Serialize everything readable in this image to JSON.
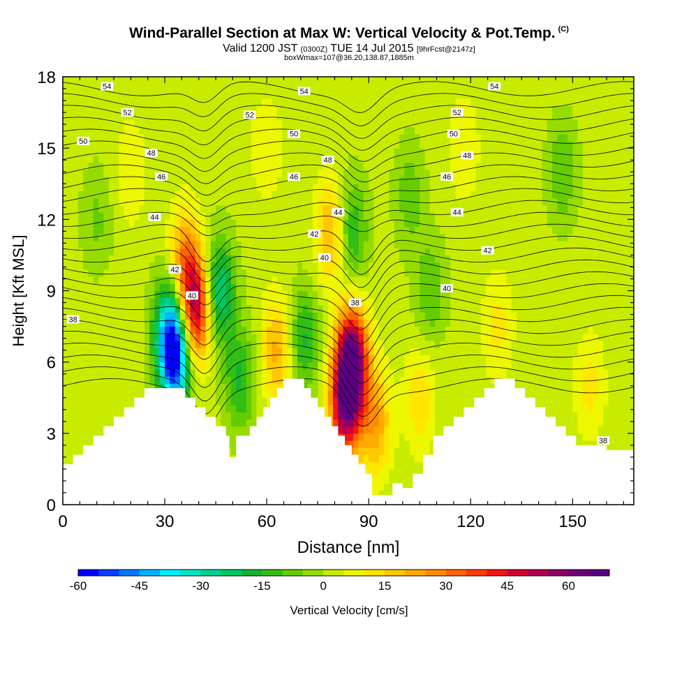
{
  "header": {
    "title": "Wind-Parallel Section at Max W: Vertical Velocity & Pot.Temp.",
    "copyright": "(C)",
    "valid_prefix": "Valid 1200 JST",
    "valid_utc": "(0300Z)",
    "valid_date": "TUE 14 Jul 2015",
    "forecast": "[9hrFcst@2147z]",
    "box_info": "boxWmax=107@36.20,138.87,1885m"
  },
  "chart_data": {
    "type": "heatmap",
    "xlabel": "Distance [nm]",
    "ylabel": "Height [Kft MSL]",
    "x_ticks": [
      0,
      30,
      60,
      90,
      120,
      150
    ],
    "y_ticks": [
      0,
      3,
      6,
      9,
      12,
      15,
      18
    ],
    "xlim": [
      0,
      168
    ],
    "ylim": [
      0,
      18
    ],
    "colorbar": {
      "label": "Vertical Velocity [cm/s]",
      "min": -60,
      "max": 70,
      "step": 5,
      "tick_values": [
        -60,
        -45,
        -30,
        -15,
        0,
        15,
        30,
        45,
        60
      ],
      "tick_labels": [
        "-60",
        "-45",
        "-30",
        "-15",
        "0",
        "15",
        "30",
        "45",
        "60"
      ],
      "colors": [
        "#0000ff",
        "#0a3cff",
        "#0078ff",
        "#00b4ff",
        "#00f0ff",
        "#00e6c8",
        "#00d296",
        "#00c864",
        "#14b432",
        "#32be14",
        "#64cc00",
        "#96dc00",
        "#c8ec00",
        "#ecf700",
        "#ffe600",
        "#ffc800",
        "#ffaa00",
        "#ff8c00",
        "#ff6400",
        "#ff3c00",
        "#f01414",
        "#d20032",
        "#b40050",
        "#8c0064",
        "#6e0078",
        "#5a0082"
      ]
    },
    "terrain_profile": [
      [
        0,
        1.7
      ],
      [
        3,
        1.7
      ],
      [
        3,
        2.1
      ],
      [
        6,
        2.1
      ],
      [
        6,
        2.5
      ],
      [
        9,
        2.5
      ],
      [
        9,
        2.9
      ],
      [
        12,
        2.9
      ],
      [
        12,
        3.3
      ],
      [
        15,
        3.3
      ],
      [
        15,
        3.7
      ],
      [
        18,
        3.7
      ],
      [
        18,
        4.1
      ],
      [
        21,
        4.1
      ],
      [
        21,
        4.5
      ],
      [
        24,
        4.5
      ],
      [
        24,
        4.9
      ],
      [
        36,
        4.9
      ],
      [
        36,
        4.5
      ],
      [
        39,
        4.5
      ],
      [
        39,
        4.1
      ],
      [
        42,
        4.1
      ],
      [
        42,
        3.7
      ],
      [
        45,
        3.7
      ],
      [
        45,
        3.3
      ],
      [
        48,
        3.3
      ],
      [
        48,
        2.9
      ],
      [
        49,
        2.9
      ],
      [
        49,
        2.0
      ],
      [
        51,
        2.0
      ],
      [
        51,
        2.9
      ],
      [
        55,
        2.9
      ],
      [
        55,
        3.3
      ],
      [
        57,
        3.3
      ],
      [
        57,
        3.7
      ],
      [
        59,
        3.7
      ],
      [
        59,
        4.1
      ],
      [
        61,
        4.1
      ],
      [
        61,
        4.5
      ],
      [
        63,
        4.5
      ],
      [
        63,
        4.9
      ],
      [
        65,
        4.9
      ],
      [
        65,
        5.3
      ],
      [
        71,
        5.3
      ],
      [
        71,
        4.9
      ],
      [
        73,
        4.9
      ],
      [
        73,
        4.5
      ],
      [
        75,
        4.5
      ],
      [
        75,
        4.1
      ],
      [
        77,
        4.1
      ],
      [
        77,
        3.7
      ],
      [
        79,
        3.7
      ],
      [
        79,
        3.3
      ],
      [
        81,
        3.3
      ],
      [
        81,
        2.9
      ],
      [
        83,
        2.9
      ],
      [
        83,
        2.5
      ],
      [
        85,
        2.5
      ],
      [
        85,
        2.1
      ],
      [
        87,
        2.1
      ],
      [
        87,
        1.7
      ],
      [
        89,
        1.7
      ],
      [
        89,
        1.3
      ],
      [
        91,
        1.3
      ],
      [
        91,
        0.4
      ],
      [
        97,
        0.4
      ],
      [
        97,
        0.9
      ],
      [
        100,
        0.9
      ],
      [
        100,
        0.7
      ],
      [
        103,
        0.7
      ],
      [
        103,
        1.3
      ],
      [
        106,
        1.3
      ],
      [
        106,
        2.1
      ],
      [
        109,
        2.1
      ],
      [
        109,
        2.9
      ],
      [
        112,
        2.9
      ],
      [
        112,
        3.3
      ],
      [
        115,
        3.3
      ],
      [
        115,
        3.7
      ],
      [
        118,
        3.7
      ],
      [
        118,
        4.1
      ],
      [
        121,
        4.1
      ],
      [
        121,
        4.5
      ],
      [
        124,
        4.5
      ],
      [
        124,
        4.9
      ],
      [
        127,
        4.9
      ],
      [
        127,
        5.3
      ],
      [
        133,
        5.3
      ],
      [
        133,
        4.9
      ],
      [
        136,
        4.9
      ],
      [
        136,
        4.5
      ],
      [
        139,
        4.5
      ],
      [
        139,
        4.1
      ],
      [
        142,
        4.1
      ],
      [
        142,
        3.7
      ],
      [
        145,
        3.7
      ],
      [
        145,
        3.3
      ],
      [
        148,
        3.3
      ],
      [
        148,
        2.9
      ],
      [
        151,
        2.9
      ],
      [
        151,
        2.5
      ],
      [
        160,
        2.5
      ],
      [
        160,
        2.3
      ],
      [
        168,
        2.3
      ]
    ],
    "velocity_features": [
      {
        "x": 33,
        "y": 6.2,
        "value": -58
      },
      {
        "x": 31,
        "y": 7.5,
        "value": -25
      },
      {
        "x": 39,
        "y": 8.2,
        "value": 48
      },
      {
        "x": 36,
        "y": 10.2,
        "value": 25
      },
      {
        "x": 46,
        "y": 9.0,
        "value": -28
      },
      {
        "x": 52,
        "y": 5.3,
        "value": -18
      },
      {
        "x": 63,
        "y": 6.5,
        "value": 20
      },
      {
        "x": 71,
        "y": 7.0,
        "value": -18
      },
      {
        "x": 85,
        "y": 6.0,
        "value": 68
      },
      {
        "x": 83,
        "y": 4.0,
        "value": 45
      },
      {
        "x": 92,
        "y": 3.5,
        "value": 22
      },
      {
        "x": 79,
        "y": 11.5,
        "value": 20
      },
      {
        "x": 85,
        "y": 11.5,
        "value": -18
      },
      {
        "x": 105,
        "y": 4.5,
        "value": 12
      },
      {
        "x": 108,
        "y": 9.0,
        "value": -12
      },
      {
        "x": 128,
        "y": 7.5,
        "value": 10
      },
      {
        "x": 147,
        "y": 14.0,
        "value": -12
      },
      {
        "x": 155,
        "y": 5.0,
        "value": 10
      },
      {
        "x": 20,
        "y": 14.0,
        "value": 8
      },
      {
        "x": 60,
        "y": 15.0,
        "value": 8
      },
      {
        "x": 118,
        "y": 15.0,
        "value": 8
      },
      {
        "x": 10,
        "y": 12.0,
        "value": -8
      },
      {
        "x": 102,
        "y": 13.0,
        "value": -10
      }
    ],
    "isentrope_labels": [
      {
        "x": 13,
        "y": 17.6,
        "text": "54"
      },
      {
        "x": 71,
        "y": 17.4,
        "text": "54"
      },
      {
        "x": 127,
        "y": 17.6,
        "text": "54"
      },
      {
        "x": 19,
        "y": 16.5,
        "text": "52"
      },
      {
        "x": 55,
        "y": 16.4,
        "text": "52"
      },
      {
        "x": 116,
        "y": 16.5,
        "text": "52"
      },
      {
        "x": 6,
        "y": 15.3,
        "text": "50"
      },
      {
        "x": 68,
        "y": 15.6,
        "text": "50"
      },
      {
        "x": 115,
        "y": 15.6,
        "text": "50"
      },
      {
        "x": 26,
        "y": 14.8,
        "text": "48"
      },
      {
        "x": 78,
        "y": 14.5,
        "text": "48"
      },
      {
        "x": 119,
        "y": 14.7,
        "text": "48"
      },
      {
        "x": 29,
        "y": 13.8,
        "text": "46"
      },
      {
        "x": 68,
        "y": 13.8,
        "text": "46"
      },
      {
        "x": 113,
        "y": 13.8,
        "text": "46"
      },
      {
        "x": 27,
        "y": 12.1,
        "text": "44"
      },
      {
        "x": 81,
        "y": 12.3,
        "text": "44"
      },
      {
        "x": 116,
        "y": 12.3,
        "text": "44"
      },
      {
        "x": 74,
        "y": 11.4,
        "text": "42"
      },
      {
        "x": 125,
        "y": 10.7,
        "text": "42"
      },
      {
        "x": 33,
        "y": 9.9,
        "text": "42"
      },
      {
        "x": 77,
        "y": 10.4,
        "text": "40"
      },
      {
        "x": 113,
        "y": 9.1,
        "text": "40"
      },
      {
        "x": 38,
        "y": 8.8,
        "text": "40"
      },
      {
        "x": 86,
        "y": 8.5,
        "text": "38"
      },
      {
        "x": 3,
        "y": 7.8,
        "text": "38"
      },
      {
        "x": 159,
        "y": 2.7,
        "text": "38"
      }
    ]
  }
}
